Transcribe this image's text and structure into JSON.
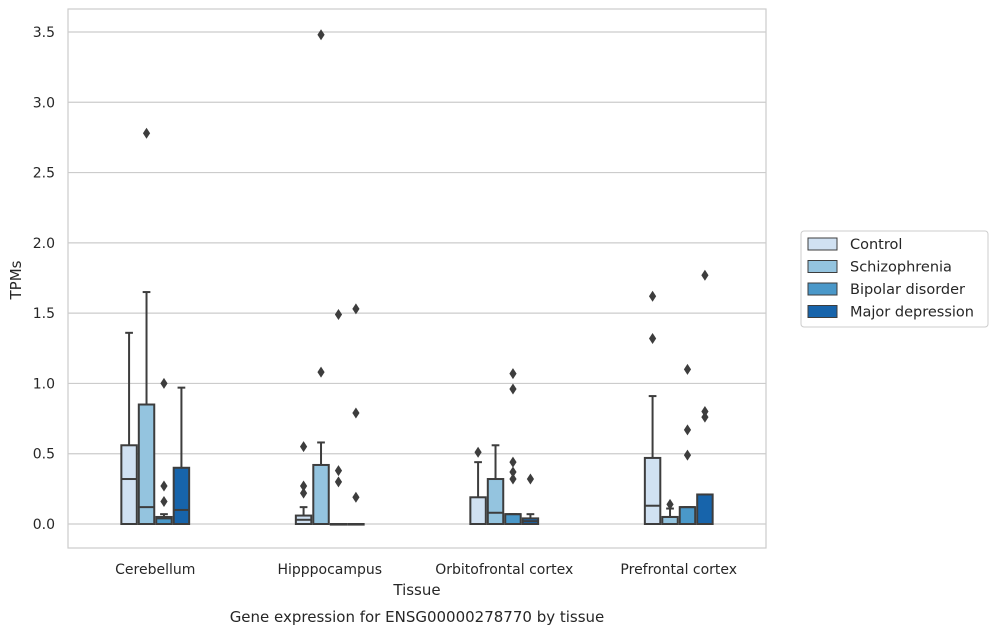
{
  "chart_data": {
    "type": "box",
    "xlabel": "Tissue",
    "ylabel": "TPMs",
    "caption": "Gene expression for ENSG00000278770 by tissue",
    "ylim": [
      -0.17,
      3.65
    ],
    "yticks": [
      "0.0",
      "0.5",
      "1.0",
      "1.5",
      "2.0",
      "2.5",
      "3.0",
      "3.5"
    ],
    "grid": "horizontal",
    "legend_position": "right",
    "categories": [
      "Cerebellum",
      "Hipppocampus",
      "Orbitofrontal cortex",
      "Prefrontal cortex"
    ],
    "series": [
      {
        "name": "Control",
        "color": "#d0e1f2",
        "boxes": [
          {
            "q1": 0.0,
            "median": 0.32,
            "q3": 0.56,
            "whisker_low": 0.0,
            "whisker_high": 1.36,
            "outliers": []
          },
          {
            "q1": 0.0,
            "median": 0.03,
            "q3": 0.06,
            "whisker_low": 0.0,
            "whisker_high": 0.12,
            "outliers": [
              0.22,
              0.27,
              0.55
            ]
          },
          {
            "q1": 0.0,
            "median": 0.0,
            "q3": 0.19,
            "whisker_low": 0.0,
            "whisker_high": 0.44,
            "outliers": [
              0.51
            ]
          },
          {
            "q1": 0.0,
            "median": 0.13,
            "q3": 0.47,
            "whisker_low": 0.0,
            "whisker_high": 0.91,
            "outliers": [
              1.32,
              1.62
            ]
          }
        ]
      },
      {
        "name": "Schizophrenia",
        "color": "#94c4df",
        "boxes": [
          {
            "q1": 0.0,
            "median": 0.12,
            "q3": 0.85,
            "whisker_low": 0.0,
            "whisker_high": 1.65,
            "outliers": [
              2.78
            ]
          },
          {
            "q1": 0.0,
            "median": 0.0,
            "q3": 0.42,
            "whisker_low": 0.0,
            "whisker_high": 0.58,
            "outliers": [
              1.08,
              3.48
            ]
          },
          {
            "q1": 0.0,
            "median": 0.08,
            "q3": 0.32,
            "whisker_low": 0.0,
            "whisker_high": 0.56,
            "outliers": []
          },
          {
            "q1": 0.0,
            "median": 0.05,
            "q3": 0.05,
            "whisker_low": 0.0,
            "whisker_high": 0.11,
            "outliers": [
              0.14
            ]
          }
        ]
      },
      {
        "name": "Bipolar disorder",
        "color": "#4a98c9",
        "boxes": [
          {
            "q1": 0.0,
            "median": 0.04,
            "q3": 0.05,
            "whisker_low": 0.0,
            "whisker_high": 0.07,
            "outliers": [
              0.16,
              0.27,
              1.0
            ]
          },
          {
            "q1": 0.0,
            "median": 0.0,
            "q3": 0.0,
            "whisker_low": 0.0,
            "whisker_high": 0.0,
            "outliers": [
              0.3,
              0.38,
              1.49
            ]
          },
          {
            "q1": 0.0,
            "median": 0.07,
            "q3": 0.07,
            "whisker_low": 0.0,
            "whisker_high": 0.07,
            "outliers": [
              0.32,
              0.37,
              0.44,
              0.96,
              1.07
            ]
          },
          {
            "q1": 0.0,
            "median": 0.12,
            "q3": 0.12,
            "whisker_low": 0.0,
            "whisker_high": 0.12,
            "outliers": [
              0.49,
              0.67,
              1.1
            ]
          }
        ]
      },
      {
        "name": "Major depression",
        "color": "#1764ab",
        "boxes": [
          {
            "q1": 0.0,
            "median": 0.1,
            "q3": 0.4,
            "whisker_low": 0.0,
            "whisker_high": 0.97,
            "outliers": []
          },
          {
            "q1": 0.0,
            "median": 0.0,
            "q3": 0.0,
            "whisker_low": 0.0,
            "whisker_high": 0.0,
            "outliers": [
              0.19,
              0.79,
              1.53
            ]
          },
          {
            "q1": 0.0,
            "median": 0.02,
            "q3": 0.04,
            "whisker_low": 0.0,
            "whisker_high": 0.07,
            "outliers": [
              0.32
            ]
          },
          {
            "q1": 0.0,
            "median": 0.0,
            "q3": 0.21,
            "whisker_low": 0.0,
            "whisker_high": 0.21,
            "outliers": [
              0.76,
              0.8,
              1.77
            ]
          }
        ]
      }
    ]
  }
}
